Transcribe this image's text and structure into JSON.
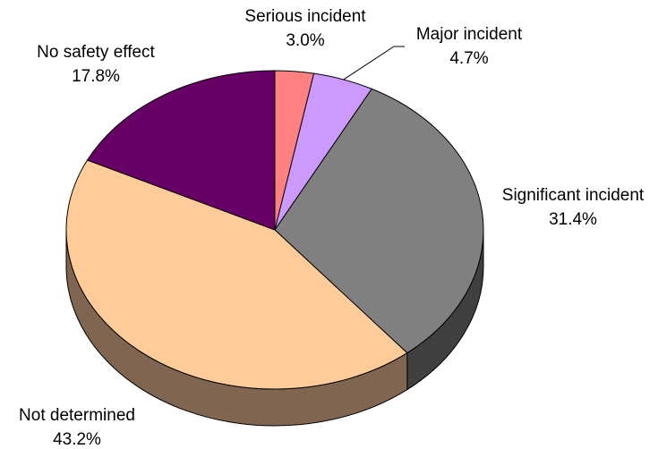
{
  "chart_data": {
    "type": "pie",
    "title": "",
    "categories": [
      "Serious incident",
      "Major incident",
      "Significant incident",
      "Not determined",
      "No safety effect"
    ],
    "values": [
      3.0,
      4.7,
      31.4,
      43.2,
      17.8
    ],
    "value_labels": [
      "3.0%",
      "4.7%",
      "31.4%",
      "43.2%",
      "17.8%"
    ],
    "colors": [
      "#ff8080",
      "#cc99ff",
      "#808080",
      "#ffcc99",
      "#660066"
    ],
    "side_colors": [
      "#b35a5a",
      "#8f6bb3",
      "#404040",
      "#806650",
      "#3a003a"
    ],
    "legend": "none",
    "three_d": true
  }
}
